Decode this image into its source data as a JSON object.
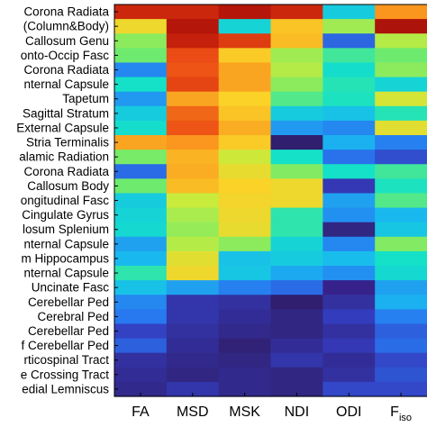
{
  "chart_data": {
    "type": "heatmap",
    "colormap": "jet/parula-like",
    "columns": [
      "FA",
      "MSD",
      "MSK",
      "NDI",
      "ODI",
      "F_iso"
    ],
    "column_display": [
      {
        "main": "FA",
        "sub": ""
      },
      {
        "main": "MSD",
        "sub": ""
      },
      {
        "main": "MSK",
        "sub": ""
      },
      {
        "main": "NDI",
        "sub": ""
      },
      {
        "main": "ODI",
        "sub": ""
      },
      {
        "main": "F",
        "sub": "iso"
      }
    ],
    "rows": [
      "Corona Radiata",
      "(Column&Body)",
      "Callosum Genu",
      "onto-Occip Fasc",
      "Corona Radiata",
      "nternal Capsule",
      "Tapetum",
      "Sagittal Stratum",
      "External Capsule",
      "Stria Terminalis",
      "alamic Radiation",
      "Corona Radiata",
      "Callosum Body",
      "ongitudinal Fasc",
      "Cingulate Gyrus",
      "losum Splenium",
      "nternal Capsule",
      "m Hippocampus",
      "nternal Capsule",
      "Uncinate Fasc",
      "Cerebellar Ped",
      "Cerebral Ped",
      "Cerebellar Ped",
      "f Cerebellar Ped",
      "rticospinal Tract",
      "e Crossing Tract",
      "edial Lemniscus"
    ],
    "values": [
      [
        0.93,
        0.93,
        0.96,
        0.93,
        0.4,
        0.8
      ],
      [
        0.7,
        0.96,
        0.42,
        0.74,
        0.6,
        0.97
      ],
      [
        0.58,
        0.94,
        0.9,
        0.75,
        0.25,
        0.62
      ],
      [
        0.55,
        0.88,
        0.73,
        0.6,
        0.5,
        0.55
      ],
      [
        0.3,
        0.87,
        0.78,
        0.62,
        0.44,
        0.58
      ],
      [
        0.45,
        0.89,
        0.78,
        0.58,
        0.47,
        0.42
      ],
      [
        0.32,
        0.78,
        0.72,
        0.52,
        0.46,
        0.66
      ],
      [
        0.4,
        0.85,
        0.74,
        0.4,
        0.38,
        0.47
      ],
      [
        0.44,
        0.87,
        0.77,
        0.32,
        0.3,
        0.68
      ],
      [
        0.78,
        0.8,
        0.73,
        0.1,
        0.35,
        0.29
      ],
      [
        0.56,
        0.76,
        0.65,
        0.45,
        0.27,
        0.21
      ],
      [
        0.26,
        0.77,
        0.69,
        0.57,
        0.45,
        0.5
      ],
      [
        0.55,
        0.75,
        0.72,
        0.7,
        0.17,
        0.46
      ],
      [
        0.4,
        0.64,
        0.71,
        0.7,
        0.33,
        0.52
      ],
      [
        0.42,
        0.61,
        0.7,
        0.48,
        0.31,
        0.36
      ],
      [
        0.43,
        0.59,
        0.69,
        0.48,
        0.12,
        0.39
      ],
      [
        0.33,
        0.62,
        0.58,
        0.42,
        0.3,
        0.57
      ],
      [
        0.36,
        0.68,
        0.38,
        0.4,
        0.37,
        0.45
      ],
      [
        0.48,
        0.7,
        0.39,
        0.34,
        0.31,
        0.43
      ],
      [
        0.38,
        0.33,
        0.29,
        0.26,
        0.05,
        0.33
      ],
      [
        0.3,
        0.16,
        0.15,
        0.1,
        0.15,
        0.35
      ],
      [
        0.28,
        0.16,
        0.14,
        0.12,
        0.18,
        0.29
      ],
      [
        0.19,
        0.15,
        0.13,
        0.12,
        0.15,
        0.24
      ],
      [
        0.24,
        0.14,
        0.11,
        0.14,
        0.17,
        0.26
      ],
      [
        0.15,
        0.13,
        0.12,
        0.16,
        0.14,
        0.2
      ],
      [
        0.14,
        0.12,
        0.13,
        0.12,
        0.15,
        0.22
      ],
      [
        0.13,
        0.16,
        0.13,
        0.12,
        0.2,
        0.2
      ]
    ],
    "value_range": [
      0,
      1
    ]
  }
}
